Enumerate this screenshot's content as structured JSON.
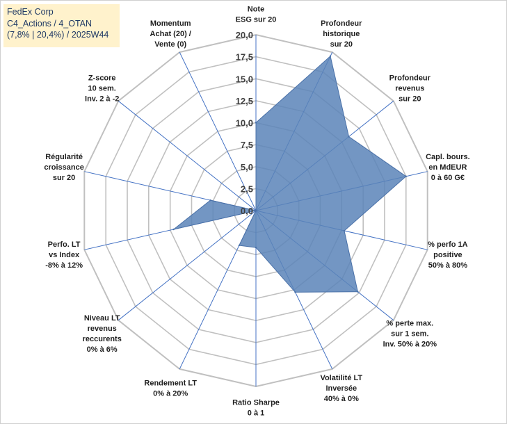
{
  "title_box": {
    "line1": "FedEx Corp",
    "line2": "C4_Actions / 4_OTAN",
    "line3": "(7,8% | 20,4%) / 2025W44"
  },
  "colors": {
    "fill": "#5b84b8",
    "stroke": "#4a71a8",
    "grid": "#c0c0c0",
    "spoke": "#4472c4",
    "title_bg": "#fff2cc",
    "title_text": "#1f3864"
  },
  "chart_data": {
    "type": "radar",
    "title": "FedEx Corp",
    "rlim": [
      0,
      20
    ],
    "tick_values": [
      0,
      2.5,
      5,
      7.5,
      10,
      12.5,
      15,
      17.5,
      20
    ],
    "tick_labels": [
      "0,0",
      "2,5",
      "5,0",
      "7,5",
      "10,0",
      "12,5",
      "15,0",
      "17,5",
      "20,0"
    ],
    "axes": [
      {
        "label": [
          "Note",
          "ESG sur 20"
        ],
        "value": 10
      },
      {
        "label": [
          "Profondeur",
          "historique",
          "sur 20"
        ],
        "value": 19.5
      },
      {
        "label": [
          "Profondeur",
          "revenus",
          "sur 20"
        ],
        "value": 13.5
      },
      {
        "label": [
          "Capl. bours.",
          "en MdEUR",
          "0 à 60 G€"
        ],
        "value": 17.5
      },
      {
        "label": [
          "% perfo 1A",
          "positive",
          "50% à 80%"
        ],
        "value": 10.3
      },
      {
        "label": [
          "% perte max.",
          "sur 1 sem.",
          "Inv. 50% à 20%"
        ],
        "value": 14.8
      },
      {
        "label": [
          "Volatilité LT",
          "Inversée",
          "40% à 0%"
        ],
        "value": 10.3
      },
      {
        "label": [
          "Ratio Sharpe",
          "0 à 1"
        ],
        "value": 4.2
      },
      {
        "label": [
          "Rendement LT",
          "0% à 20%"
        ],
        "value": 4.4
      },
      {
        "label": [
          "Niveau LT",
          "revenus",
          "reccurents",
          "0% à 6%"
        ],
        "value": 0
      },
      {
        "label": [
          "Perfo. LT",
          "vs Index",
          "-8% à 12%"
        ],
        "value": 9.6
      },
      {
        "label": [
          "Régularité",
          "croissance",
          "sur 20"
        ],
        "value": 5.3
      },
      {
        "label": [
          "Z-score",
          "10 sem.",
          "Inv. 2 à -2"
        ],
        "value": 0
      },
      {
        "label": [
          "Momentum",
          "Achat (20) /",
          "Vente (0)"
        ],
        "value": 0
      }
    ]
  }
}
